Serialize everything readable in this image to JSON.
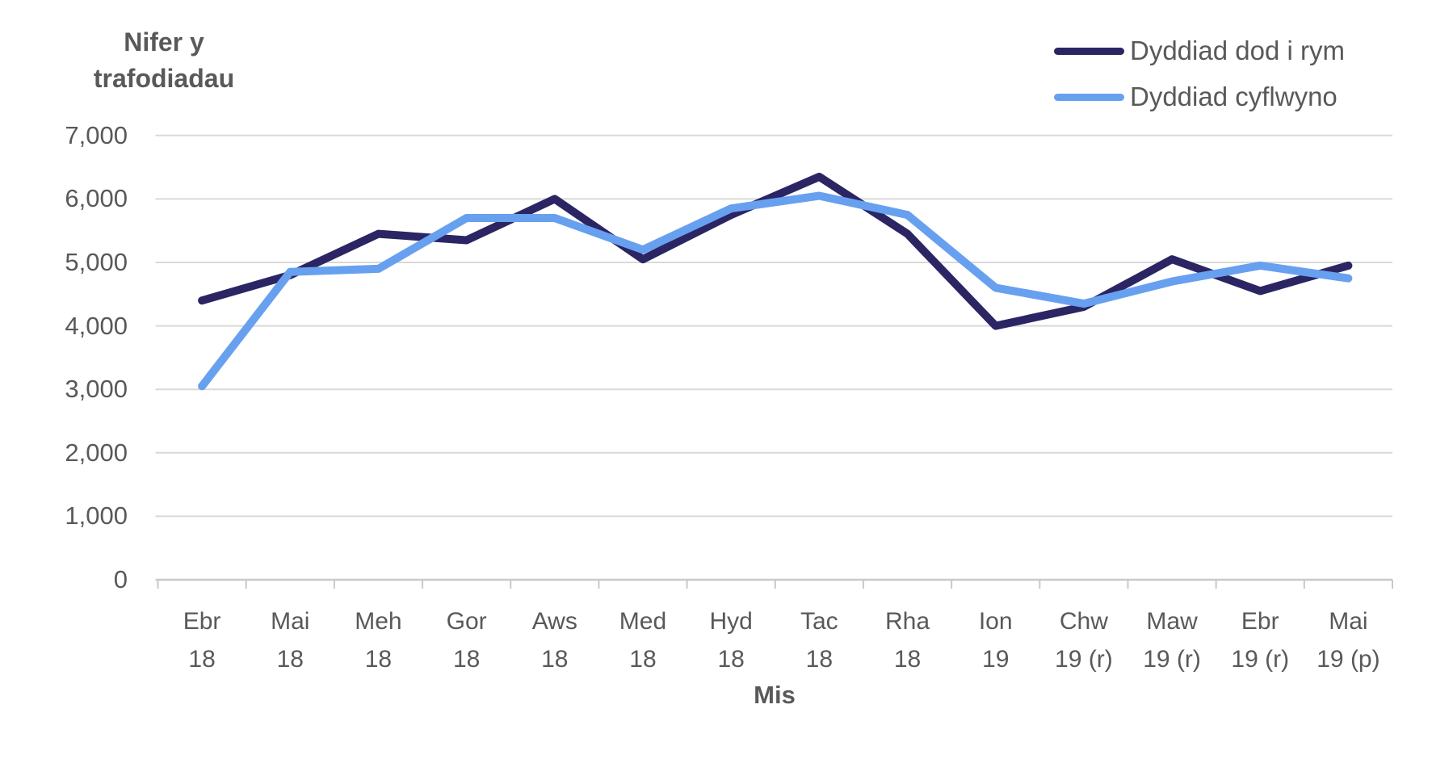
{
  "chart_data": {
    "type": "line",
    "y_axis_title": "Nifer y\ntrafodiadau",
    "x_axis_title": "Mis",
    "categories": [
      [
        "Ebr",
        "18"
      ],
      [
        "Mai",
        "18"
      ],
      [
        "Meh",
        "18"
      ],
      [
        "Gor",
        "18"
      ],
      [
        "Aws",
        "18"
      ],
      [
        "Med",
        "18"
      ],
      [
        "Hyd",
        "18"
      ],
      [
        "Tac",
        "18"
      ],
      [
        "Rha",
        "18"
      ],
      [
        "Ion",
        "19"
      ],
      [
        "Chw",
        "19 (r)"
      ],
      [
        "Maw",
        "19 (r)"
      ],
      [
        "Ebr",
        "19 (r)"
      ],
      [
        "Mai",
        "19 (p)"
      ]
    ],
    "series": [
      {
        "name": "Dyddiad dod i rym",
        "color": "#2B2564",
        "values": [
          4400,
          4800,
          5450,
          5350,
          6000,
          5050,
          5750,
          6350,
          5450,
          4000,
          4300,
          5050,
          4550,
          4950
        ]
      },
      {
        "name": "Dyddiad cyflwyno",
        "color": "#68A0F0",
        "values": [
          3050,
          4850,
          4900,
          5700,
          5700,
          5200,
          5850,
          6050,
          5750,
          4600,
          4350,
          4700,
          4950,
          4750
        ]
      }
    ],
    "y_ticks": [
      {
        "value": 0,
        "label": "0"
      },
      {
        "value": 1000,
        "label": "1,000"
      },
      {
        "value": 2000,
        "label": "2,000"
      },
      {
        "value": 3000,
        "label": "3,000"
      },
      {
        "value": 4000,
        "label": "4,000"
      },
      {
        "value": 5000,
        "label": "5,000"
      },
      {
        "value": 6000,
        "label": "6,000"
      },
      {
        "value": 7000,
        "label": "7,000"
      }
    ],
    "ylim": [
      0,
      7000
    ],
    "grid": "horizontal",
    "legend_position": "top-right",
    "gridline_color": "#D9D9D9",
    "axis_line_color": "#C9C9C9",
    "text_color": "#595959"
  }
}
